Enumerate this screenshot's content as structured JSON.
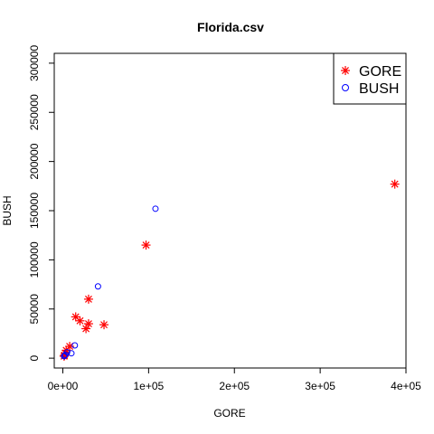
{
  "chart_data": {
    "type": "scatter",
    "title": "Florida.csv",
    "xlabel": "GORE",
    "ylabel": "BUSH",
    "xlim": [
      -10000,
      400000
    ],
    "ylim": [
      -10000,
      310000
    ],
    "x_ticks": [
      0,
      100000,
      200000,
      300000,
      400000
    ],
    "x_tick_labels": [
      "0e+00",
      "1e+05",
      "2e+05",
      "3e+05",
      "4e+05"
    ],
    "y_ticks": [
      0,
      50000,
      100000,
      150000,
      200000,
      250000,
      300000
    ],
    "y_tick_labels": [
      "0",
      "50000",
      "100000",
      "150000",
      "200000",
      "250000",
      "300000"
    ],
    "legend_position": "top-right",
    "grid": false,
    "series": [
      {
        "name": "GORE",
        "marker": "asterisk",
        "color": "#ff0000",
        "points": [
          [
            387000,
            177000
          ],
          [
            97000,
            115000
          ],
          [
            30000,
            60000
          ],
          [
            15000,
            42000
          ],
          [
            20000,
            38000
          ],
          [
            48000,
            34000
          ],
          [
            30000,
            35000
          ],
          [
            27000,
            30000
          ],
          [
            8000,
            12000
          ],
          [
            4000,
            8000
          ],
          [
            3000,
            5000
          ],
          [
            2000,
            3000
          ],
          [
            1500,
            2000
          ]
        ]
      },
      {
        "name": "BUSH",
        "marker": "circle",
        "color": "#0000ff",
        "points": [
          [
            108000,
            152000
          ],
          [
            41000,
            73000
          ],
          [
            14000,
            13000
          ],
          [
            10000,
            5000
          ],
          [
            5000,
            6000
          ],
          [
            3000,
            3500
          ],
          [
            2000,
            2500
          ],
          [
            1500,
            2000
          ]
        ]
      }
    ]
  }
}
